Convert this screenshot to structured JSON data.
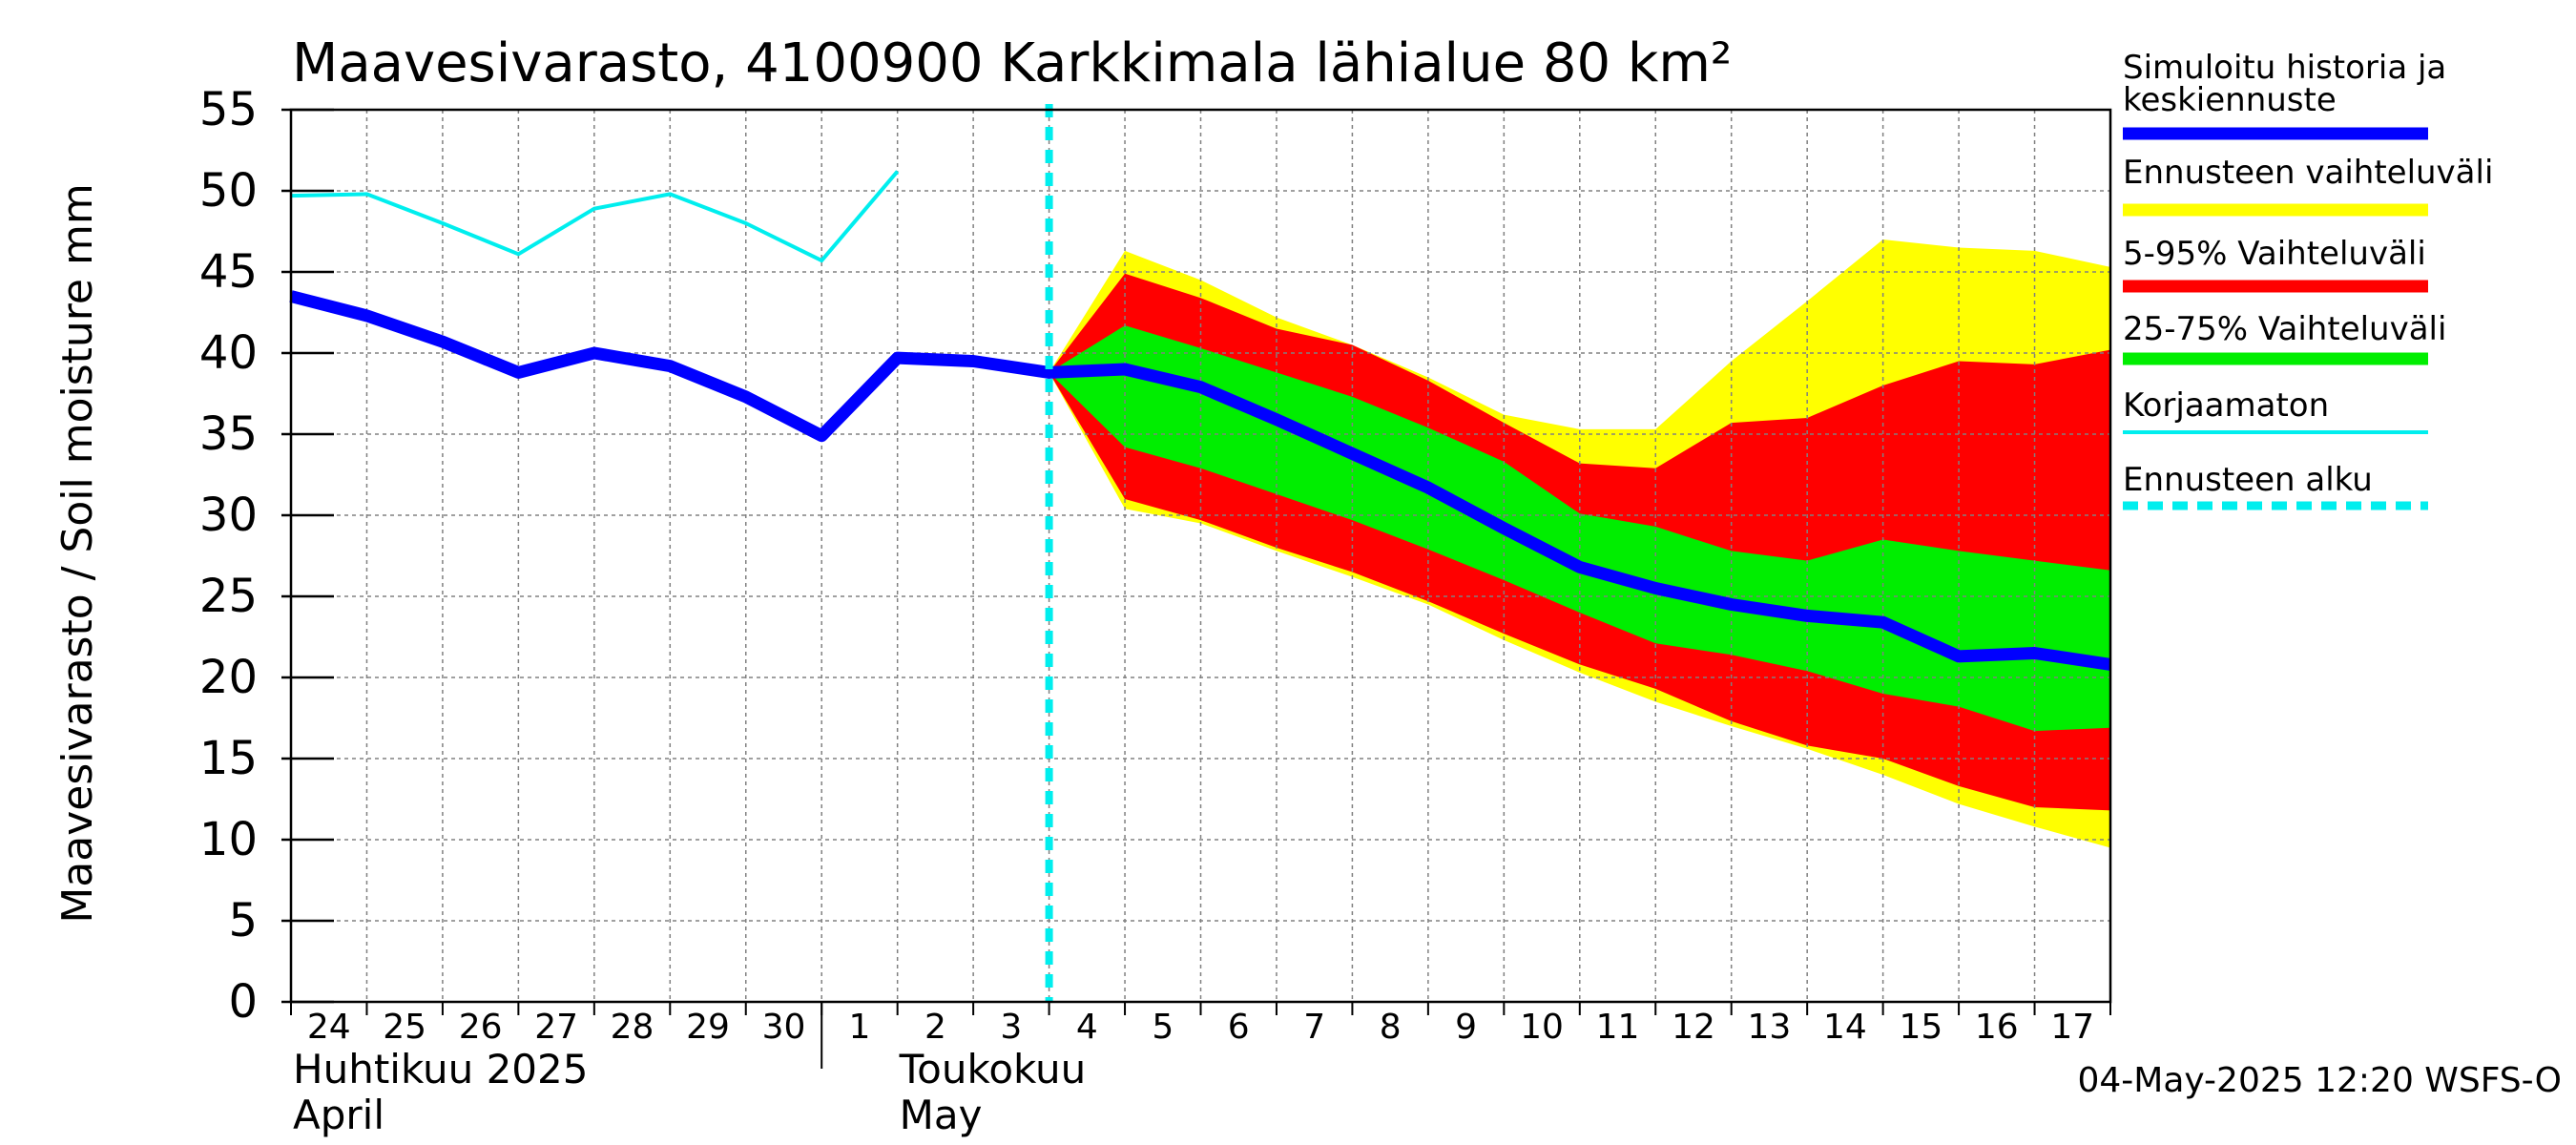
{
  "chart_data": {
    "type": "area",
    "title": "Maavesivarasto, 4100900 Karkkimala lähialue 80 km²",
    "ylabel": "Maavesivarasto / Soil moisture   mm",
    "ylim": [
      0,
      55
    ],
    "yticks": [
      0,
      5,
      10,
      15,
      20,
      25,
      30,
      35,
      40,
      45,
      50,
      55
    ],
    "x_day_index_range": [
      0,
      24
    ],
    "x_tick_labels": [
      "24",
      "25",
      "26",
      "27",
      "28",
      "29",
      "30",
      "1",
      "2",
      "3",
      "4",
      "5",
      "6",
      "7",
      "8",
      "9",
      "10",
      "11",
      "12",
      "13",
      "14",
      "15",
      "16",
      "17"
    ],
    "month_labels": [
      {
        "line1": "Huhtikuu  2025",
        "line2": "April"
      },
      {
        "line1": "Toukokuu",
        "line2": "May"
      }
    ],
    "forecast_start_day_index": 10,
    "series": [
      {
        "name": "Simuloitu historia ja keskiennuste",
        "color": "#0000ff",
        "x": [
          0,
          1,
          2,
          3,
          4,
          5,
          6,
          7,
          8,
          9,
          10,
          11,
          12,
          13,
          14,
          15,
          16,
          17,
          18,
          19,
          20,
          21,
          22,
          23,
          24
        ],
        "values": [
          43.5,
          42.3,
          40.7,
          38.8,
          40,
          39.2,
          37.3,
          34.9,
          39.7,
          39.5,
          38.8,
          39,
          37.9,
          35.9,
          33.8,
          31.7,
          29.2,
          26.8,
          25.5,
          24.5,
          23.8,
          23.4,
          21.3,
          21.5,
          20.8
        ]
      },
      {
        "name": "Korjaamaton",
        "color": "#00eeee",
        "x": [
          0,
          1,
          2,
          3,
          4,
          5,
          6,
          7,
          8
        ],
        "values": [
          49.7,
          49.8,
          48,
          46.1,
          48.9,
          49.8,
          48,
          45.7,
          51.2
        ]
      }
    ],
    "bands": [
      {
        "name": "Ennusteen vaihteluväli",
        "color": "#ffff00",
        "x": [
          10,
          11,
          12,
          13,
          14,
          15,
          16,
          17,
          18,
          19,
          20,
          21,
          22,
          23,
          24
        ],
        "upper": [
          38.8,
          46.3,
          44.5,
          42.2,
          40.5,
          38.5,
          36.2,
          35.3,
          35.3,
          39.5,
          43.2,
          47,
          46.5,
          46.3,
          45.3
        ],
        "lower": [
          38.8,
          30.4,
          29.5,
          27.8,
          26.2,
          24.5,
          22.3,
          20.3,
          18.5,
          17,
          15.6,
          14,
          12.2,
          10.8,
          9.5
        ]
      },
      {
        "name": "5-95% Vaihteluväli",
        "color": "#ff0000",
        "x": [
          10,
          11,
          12,
          13,
          14,
          15,
          16,
          17,
          18,
          19,
          20,
          21,
          22,
          23,
          24
        ],
        "upper": [
          38.8,
          44.9,
          43.4,
          41.5,
          40.5,
          38.3,
          35.7,
          33.2,
          32.9,
          35.7,
          36,
          38,
          39.5,
          39.3,
          40.2
        ],
        "lower": [
          38.8,
          31,
          29.7,
          28,
          26.5,
          24.7,
          22.7,
          20.8,
          19.3,
          17.3,
          15.8,
          15,
          13.3,
          12,
          11.8
        ]
      },
      {
        "name": "25-75% Vaihteluväli",
        "color": "#00ee00",
        "x": [
          10,
          11,
          12,
          13,
          14,
          15,
          16,
          17,
          18,
          19,
          20,
          21,
          22,
          23,
          24
        ],
        "upper": [
          38.8,
          41.7,
          40.3,
          38.8,
          37.3,
          35.4,
          33.3,
          30.1,
          29.3,
          27.8,
          27.2,
          28.5,
          27.8,
          27.2,
          26.6
        ],
        "lower": [
          38.8,
          34.2,
          32.9,
          31.3,
          29.7,
          27.9,
          26,
          24,
          22.1,
          21.4,
          20.4,
          19,
          18.2,
          16.7,
          16.9
        ]
      }
    ],
    "legend": [
      {
        "label": "Simuloitu historia ja keskiennuste",
        "color": "#0000ff",
        "style": "thick"
      },
      {
        "label": "Ennusteen vaihteluväli",
        "color": "#ffff00",
        "style": "thick"
      },
      {
        "label": "5-95% Vaihteluväli",
        "color": "#ff0000",
        "style": "thick"
      },
      {
        "label": "25-75% Vaihteluväli",
        "color": "#00ee00",
        "style": "thick"
      },
      {
        "label": "Korjaamaton",
        "color": "#00eeee",
        "style": "thin"
      },
      {
        "label": "Ennusteen alku",
        "color": "#00eeee",
        "style": "dashed"
      }
    ],
    "legend_position": "right",
    "grid": true,
    "footer": "04-May-2025 12:20 WSFS-O"
  }
}
